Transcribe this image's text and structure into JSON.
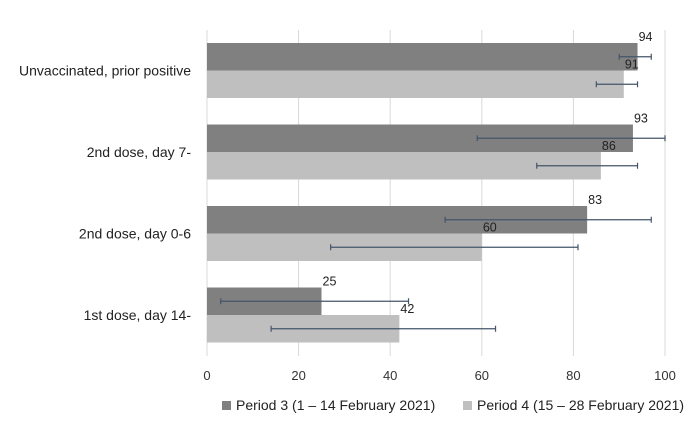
{
  "chart_data": {
    "type": "bar",
    "orientation": "horizontal",
    "categories": [
      "Unvaccinated, prior positive",
      "2nd dose, day 7-",
      "2nd dose, day 0-6",
      "1st dose, day 14-"
    ],
    "series": [
      {
        "name": "Period 3 (1 – 14 February 2021)",
        "color": "#808080",
        "values": [
          94,
          93,
          83,
          25
        ],
        "ci_low": [
          90,
          59,
          52,
          3
        ],
        "ci_high": [
          97,
          100,
          97,
          44
        ]
      },
      {
        "name": "Period 4 (15 – 28 February 2021)",
        "color": "#bfbfbf",
        "values": [
          91,
          86,
          60,
          42
        ],
        "ci_low": [
          85,
          72,
          27,
          14
        ],
        "ci_high": [
          94,
          94,
          81,
          63
        ]
      }
    ],
    "xlim": [
      0,
      100
    ],
    "xticks": [
      "0",
      "20",
      "40",
      "60",
      "80",
      "100"
    ],
    "grid": "vertical",
    "error_bar_color": "#44546a",
    "legend_position": "bottom",
    "title": "",
    "xlabel": "",
    "ylabel": ""
  }
}
